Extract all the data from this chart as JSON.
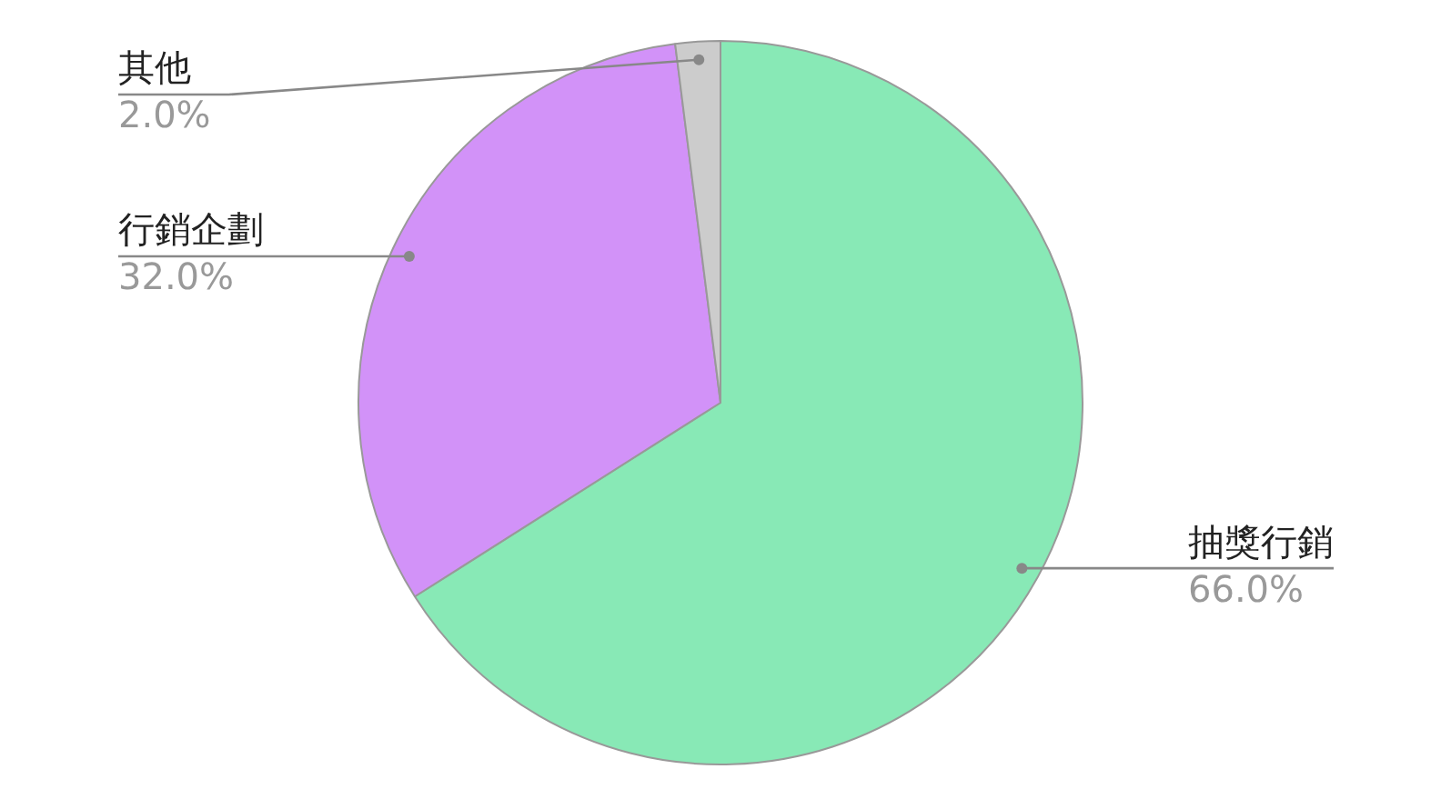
{
  "chart_data": {
    "type": "pie",
    "categories": [
      "抽獎行銷",
      "行銷企劃",
      "其他"
    ],
    "values": [
      66,
      32,
      2
    ],
    "colors": [
      "#88e9b6",
      "#d292f8",
      "#cccccc"
    ],
    "value_labels": [
      "66.0%",
      "32.0%",
      "2.0%"
    ],
    "legend": false
  }
}
